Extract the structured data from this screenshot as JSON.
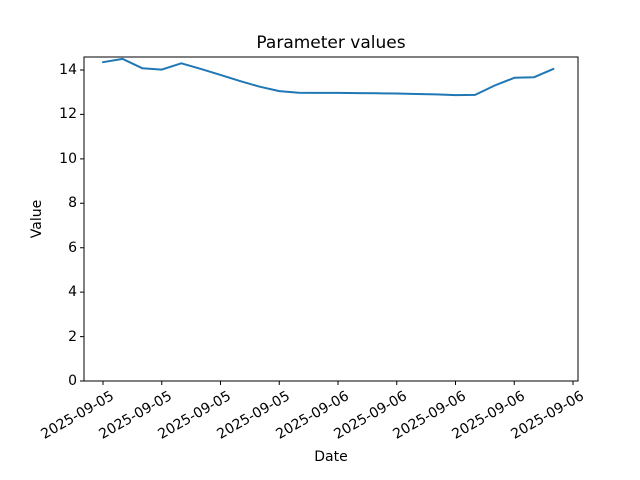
{
  "figure": {
    "background": "#ffffff",
    "text_color": "#000000",
    "axis_color": "#000000"
  },
  "chart_data": {
    "type": "line",
    "title": "Parameter values",
    "xlabel": "Date",
    "ylabel": "Value",
    "grid": false,
    "legend": false,
    "line_color": "#1f77b4",
    "line_width": 2,
    "ylim": [
      0,
      14.6
    ],
    "yticks": [
      0,
      2,
      4,
      6,
      8,
      10,
      12,
      14
    ],
    "xtick_labels": [
      "2025-09-05",
      "2025-09-05",
      "2025-09-05",
      "2025-09-05",
      "2025-09-06",
      "2025-09-06",
      "2025-09-06",
      "2025-09-06",
      "2025-09-06"
    ],
    "xtick_positions": [
      0,
      3,
      6,
      9,
      12,
      15,
      18,
      21,
      24
    ],
    "xtick_rotation_deg": 30,
    "x": [
      0,
      1,
      2,
      3,
      4,
      5,
      6,
      7,
      8,
      9,
      10,
      11,
      12,
      13,
      14,
      15,
      16,
      17,
      18,
      19,
      20,
      21,
      22,
      23
    ],
    "values": [
      14.35,
      14.5,
      14.08,
      14.02,
      14.3,
      14.05,
      13.78,
      13.5,
      13.25,
      13.05,
      12.98,
      12.97,
      12.97,
      12.96,
      12.95,
      12.94,
      12.92,
      12.9,
      12.87,
      12.88,
      13.3,
      13.65,
      13.67,
      14.05
    ]
  }
}
